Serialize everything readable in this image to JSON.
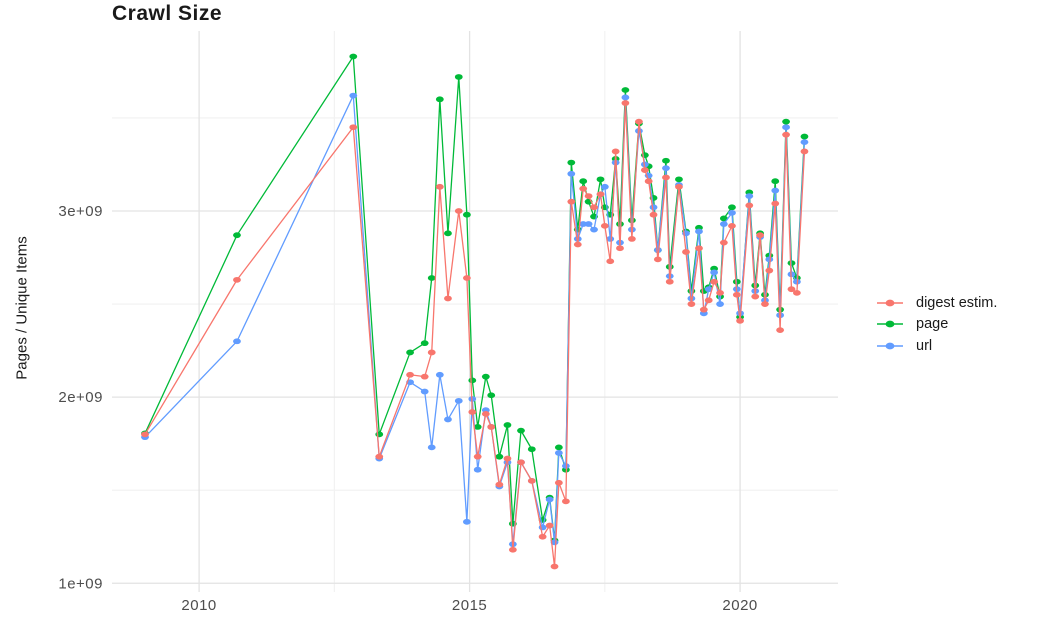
{
  "title": "Crawl Size",
  "chart_data": {
    "type": "line",
    "title": "Crawl Size",
    "xlabel": "",
    "ylabel": "Pages / Unique Items",
    "grid": true,
    "legend_position": "right-center",
    "background": "#ffffff",
    "grid_major_color": "#e3e3e3",
    "grid_minor_color": "#f1f1f1",
    "xlim": [
      2008.39,
      2021.81
    ],
    "ylim_e9": [
      0.953,
      3.967
    ],
    "x_ticks": {
      "values": [
        2010,
        2015,
        2020
      ],
      "labels": [
        "2010",
        "2015",
        "2020"
      ]
    },
    "y_ticks": {
      "values_e9": [
        1,
        2,
        3
      ],
      "labels": [
        "1e+09",
        "2e+09",
        "3e+09"
      ]
    },
    "x_minor": [
      2012.5,
      2017.5
    ],
    "y_minor_e9": [
      1.5,
      2.5,
      3.5
    ],
    "x": [
      2009.0,
      2010.7,
      2012.85,
      2013.33,
      2013.9,
      2014.17,
      2014.3,
      2014.45,
      2014.6,
      2014.8,
      2014.95,
      2015.05,
      2015.15,
      2015.3,
      2015.4,
      2015.55,
      2015.7,
      2015.8,
      2015.95,
      2016.15,
      2016.35,
      2016.48,
      2016.57,
      2016.65,
      2016.78,
      2016.88,
      2017.0,
      2017.1,
      2017.2,
      2017.3,
      2017.42,
      2017.5,
      2017.6,
      2017.7,
      2017.78,
      2017.88,
      2018.0,
      2018.13,
      2018.24,
      2018.31,
      2018.4,
      2018.48,
      2018.63,
      2018.7,
      2018.87,
      2019.0,
      2019.1,
      2019.24,
      2019.33,
      2019.42,
      2019.52,
      2019.63,
      2019.7,
      2019.85,
      2019.94,
      2020.0,
      2020.17,
      2020.28,
      2020.37,
      2020.46,
      2020.54,
      2020.65,
      2020.74,
      2020.85,
      2020.95,
      2021.05,
      2021.19
    ],
    "series": [
      {
        "name": "digest estim.",
        "color": "#F8766D",
        "values_e9": [
          1.8,
          2.63,
          3.45,
          1.68,
          2.12,
          2.11,
          2.24,
          3.13,
          2.53,
          3.0,
          2.64,
          1.92,
          1.68,
          1.91,
          1.84,
          1.53,
          1.67,
          1.18,
          1.65,
          1.55,
          1.25,
          1.31,
          1.09,
          1.54,
          1.44,
          3.05,
          2.82,
          3.12,
          3.08,
          3.02,
          3.09,
          2.92,
          2.73,
          3.32,
          2.8,
          3.58,
          2.85,
          3.48,
          3.22,
          3.16,
          2.98,
          2.74,
          3.18,
          2.62,
          3.13,
          2.78,
          2.5,
          2.8,
          2.47,
          2.52,
          2.62,
          2.56,
          2.83,
          2.92,
          2.55,
          2.41,
          3.03,
          2.54,
          2.87,
          2.5,
          2.68,
          3.04,
          2.36,
          3.41,
          2.58,
          2.56,
          3.32
        ]
      },
      {
        "name": "page",
        "color": "#00BA38",
        "values_e9": [
          1.805,
          2.87,
          3.83,
          1.8,
          2.24,
          2.29,
          2.64,
          3.6,
          2.88,
          3.72,
          2.98,
          2.09,
          1.84,
          2.11,
          2.01,
          1.68,
          1.85,
          1.32,
          1.82,
          1.72,
          1.34,
          1.46,
          1.23,
          1.73,
          1.61,
          3.26,
          2.9,
          3.16,
          3.05,
          2.97,
          3.17,
          3.02,
          2.98,
          3.28,
          2.93,
          3.65,
          2.95,
          3.47,
          3.3,
          3.24,
          3.07,
          2.79,
          3.27,
          2.7,
          3.17,
          2.89,
          2.57,
          2.91,
          2.57,
          2.59,
          2.69,
          2.54,
          2.96,
          3.02,
          2.62,
          2.43,
          3.1,
          2.6,
          2.88,
          2.55,
          2.76,
          3.16,
          2.47,
          3.48,
          2.72,
          2.64,
          3.4
        ]
      },
      {
        "name": "url",
        "color": "#619CFF",
        "values_e9": [
          1.785,
          2.3,
          3.62,
          1.67,
          2.08,
          2.03,
          1.73,
          2.12,
          1.88,
          1.98,
          1.33,
          1.99,
          1.61,
          1.93,
          1.84,
          1.52,
          1.65,
          1.21,
          1.65,
          1.55,
          1.3,
          1.45,
          1.22,
          1.7,
          1.63,
          3.2,
          2.85,
          2.93,
          2.93,
          2.9,
          3.09,
          3.13,
          2.85,
          3.26,
          2.83,
          3.61,
          2.9,
          3.43,
          3.25,
          3.19,
          3.02,
          2.79,
          3.23,
          2.65,
          3.14,
          2.88,
          2.53,
          2.89,
          2.45,
          2.58,
          2.67,
          2.5,
          2.93,
          2.99,
          2.58,
          2.45,
          3.08,
          2.57,
          2.86,
          2.52,
          2.74,
          3.11,
          2.44,
          3.45,
          2.66,
          2.62,
          3.37
        ]
      }
    ],
    "draw_order": [
      "page",
      "url",
      "digest estim."
    ]
  }
}
